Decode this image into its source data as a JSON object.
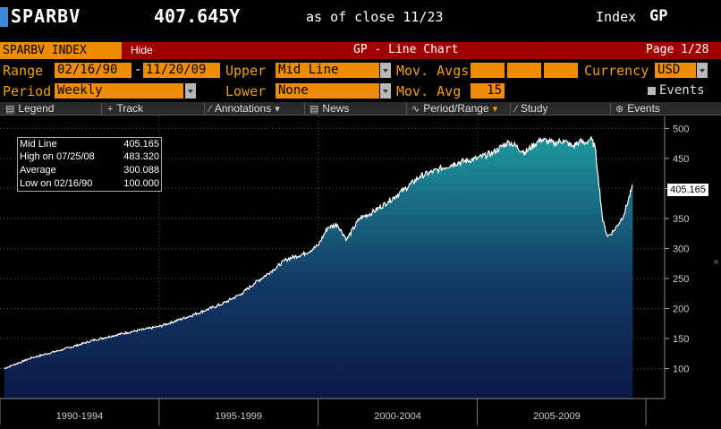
{
  "header": {
    "ticker": "SPARBV",
    "price": "407.645Y",
    "as_of": "as of close 11/23",
    "index_label": "Index",
    "function": "GP"
  },
  "titlebar": {
    "security": "SPARBV INDEX",
    "hide": "Hide",
    "title": "GP - Line Chart",
    "page": "Page 1/28"
  },
  "params": {
    "range_label": "Range",
    "range_start": "02/16/90",
    "range_sep": "-",
    "range_end": "11/20/09",
    "upper_label": "Upper",
    "upper_value": "Mid Line",
    "movavgs_label": "Mov. Avgs",
    "currency_label": "Currency",
    "currency_value": "USD",
    "period_label": "Period",
    "period_value": "Weekly",
    "lower_label": "Lower",
    "lower_value": "None",
    "movavg_label": "Mov. Avg",
    "movavg_value": "15",
    "events_label": "Events"
  },
  "toolbar": {
    "legend": "Legend",
    "track": "Track",
    "annotations": "Annotations",
    "news": "News",
    "period_range": "Period/Range",
    "study": "Study",
    "events": "Events"
  },
  "infobox": {
    "mid_label": "Mid Line",
    "mid_value": "405.165",
    "high_label": "High on  07/25/08",
    "high_value": "483.320",
    "avg_label": "Average",
    "avg_value": "300.088",
    "low_label": "Low on  02/16/90",
    "low_value": "100.000"
  },
  "last_value_tag": "405.165",
  "colors": {
    "accent_orange": "#f08c00",
    "title_red": "#a00000",
    "area_top": "#1d8f96",
    "area_bottom": "#0c1a45"
  },
  "chart_data": {
    "type": "area",
    "ylim": [
      50,
      520
    ],
    "yticks": [
      100,
      150,
      200,
      250,
      300,
      350,
      400,
      450,
      500
    ],
    "xlabels": [
      "1990-1994",
      "1995-1999",
      "2000-2004",
      "2005-2009"
    ],
    "x": [
      1990.13,
      1991.0,
      1992.0,
      1993.0,
      1994.0,
      1995.0,
      1996.0,
      1997.0,
      1997.6,
      1998.0,
      1998.6,
      1999.0,
      1999.6,
      2000.0,
      2000.3,
      2000.6,
      2000.9,
      2001.3,
      2001.7,
      2002.2,
      2002.7,
      2003.2,
      2003.8,
      2004.3,
      2005.0,
      2005.5,
      2006.0,
      2006.5,
      2007.0,
      2007.4,
      2007.7,
      2008.0,
      2008.2,
      2008.4,
      2008.56,
      2008.7,
      2008.8,
      2008.95,
      2009.1,
      2009.3,
      2009.6,
      2009.89
    ],
    "y": [
      100,
      118,
      132,
      148,
      160,
      170,
      188,
      208,
      225,
      242,
      265,
      282,
      292,
      305,
      335,
      340,
      315,
      350,
      360,
      378,
      398,
      420,
      432,
      442,
      450,
      460,
      478,
      460,
      482,
      475,
      480,
      470,
      478,
      476,
      483,
      470,
      420,
      345,
      320,
      330,
      355,
      405
    ]
  }
}
